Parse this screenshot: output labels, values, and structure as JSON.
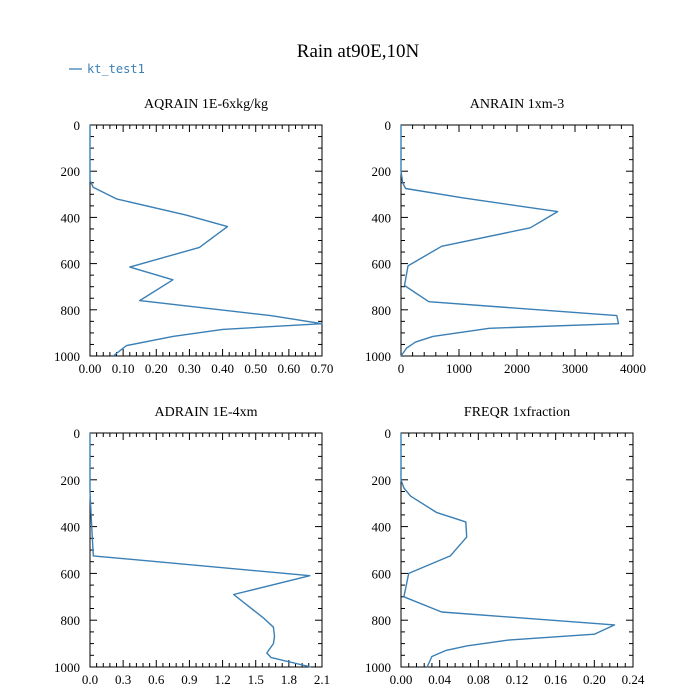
{
  "figure": {
    "title": "Rain at90E,10N",
    "legend": {
      "label": "kt_test1",
      "color": "#3a7fb5"
    }
  },
  "chart_data": [
    {
      "type": "line",
      "title": "AQRAIN  1E-6xkg/kg",
      "xlim": [
        0,
        0.7
      ],
      "ylim": [
        1000,
        0
      ],
      "y_inverted": true,
      "xticks": [
        "0.00",
        "0.10",
        "0.20",
        "0.30",
        "0.40",
        "0.50",
        "0.60",
        "0.70"
      ],
      "yticks": [
        "0",
        "200",
        "400",
        "600",
        "800",
        "1000"
      ],
      "series": [
        {
          "name": "kt_test1",
          "color": "#3a7fb5",
          "x": [
            0,
            0,
            0,
            0.01,
            0.08,
            0.29,
            0.415,
            0.33,
            0.12,
            0.25,
            0.15,
            0.545,
            0.7,
            0.4,
            0.25,
            0.11,
            0.07
          ],
          "y": [
            0,
            150,
            240,
            270,
            320,
            390,
            440,
            530,
            615,
            670,
            760,
            825,
            860,
            885,
            915,
            955,
            1000
          ]
        }
      ]
    },
    {
      "type": "line",
      "title": "ANRAIN  1xm-3",
      "xlim": [
        0,
        4000
      ],
      "ylim": [
        1000,
        0
      ],
      "y_inverted": true,
      "xticks": [
        "0",
        "1000",
        "2000",
        "3000",
        "4000"
      ],
      "yticks": [
        "0",
        "200",
        "400",
        "600",
        "800",
        "1000"
      ],
      "series": [
        {
          "name": "kt_test1",
          "color": "#3a7fb5",
          "x": [
            0,
            0,
            30,
            80,
            1060,
            2700,
            2230,
            700,
            120,
            60,
            480,
            3720,
            3750,
            1520,
            550,
            250,
            100,
            0
          ],
          "y": [
            0,
            200,
            250,
            275,
            315,
            375,
            445,
            525,
            610,
            695,
            765,
            825,
            860,
            880,
            915,
            940,
            965,
            1000
          ]
        }
      ]
    },
    {
      "type": "line",
      "title": "ADRAIN  1E-4xm",
      "xlim": [
        0,
        2.1
      ],
      "ylim": [
        1000,
        0
      ],
      "y_inverted": true,
      "xticks": [
        "0.0",
        "0.3",
        "0.6",
        "0.9",
        "1.2",
        "1.5",
        "1.8",
        "2.1"
      ],
      "yticks": [
        "0",
        "200",
        "400",
        "600",
        "800",
        "1000"
      ],
      "series": [
        {
          "name": "kt_test1",
          "color": "#3a7fb5",
          "x": [
            0,
            0,
            0.01,
            0.03,
            1.99,
            1.3,
            1.57,
            1.66,
            1.67,
            1.66,
            1.6,
            1.64,
            2.0
          ],
          "y": [
            0,
            250,
            350,
            525,
            610,
            690,
            790,
            830,
            870,
            900,
            940,
            960,
            1000
          ]
        }
      ]
    },
    {
      "type": "line",
      "title": "FREQR  1xfraction",
      "xlim": [
        0,
        0.24
      ],
      "ylim": [
        1000,
        0
      ],
      "y_inverted": true,
      "xticks": [
        "0.00",
        "0.04",
        "0.08",
        "0.12",
        "0.16",
        "0.20",
        "0.24"
      ],
      "yticks": [
        "0",
        "200",
        "400",
        "600",
        "800",
        "1000"
      ],
      "series": [
        {
          "name": "kt_test1",
          "color": "#3a7fb5",
          "x": [
            0,
            0,
            0.003,
            0.01,
            0.037,
            0.067,
            0.068,
            0.051,
            0.008,
            0.003,
            0.042,
            0.221,
            0.2,
            0.111,
            0.068,
            0.046,
            0.032,
            0.027
          ],
          "y": [
            0,
            200,
            235,
            270,
            340,
            380,
            445,
            525,
            600,
            700,
            765,
            820,
            860,
            885,
            910,
            930,
            955,
            1000
          ]
        }
      ]
    }
  ]
}
